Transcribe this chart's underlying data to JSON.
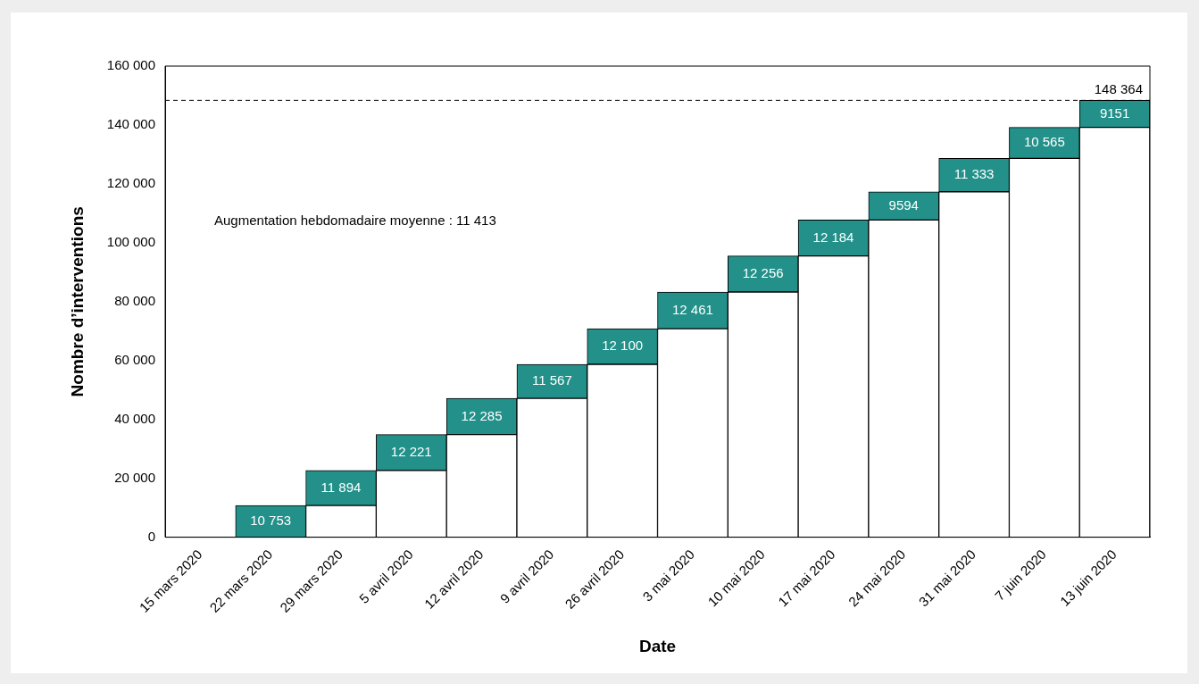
{
  "chart_data": {
    "type": "bar",
    "stacked": true,
    "xlabel": "Date",
    "ylabel": "Nombre d’interventions",
    "categories": [
      "15 mars 2020",
      "22 mars 2020",
      "29 mars 2020",
      "5 avril 2020",
      "12 avril 2020",
      "9 avril 2020",
      "26 avril 2020",
      "3 mai 2020",
      "10 mai 2020",
      "17 mai 2020",
      "24 mai 2020",
      "31 mai 2020",
      "7 juin 2020",
      "13 juin 2020"
    ],
    "series": [
      {
        "color": "#ffffff",
        "values": [
          null,
          null,
          10753,
          22647,
          34868,
          47153,
          58720,
          70820,
          83281,
          95537,
          107721,
          117315,
          128648,
          139213
        ]
      },
      {
        "color": "#23918a",
        "values": [
          null,
          10753,
          11894,
          12221,
          12285,
          11567,
          12100,
          12461,
          12256,
          12184,
          9594,
          11333,
          10565,
          9151
        ],
        "value_labels": [
          null,
          "10 753",
          "11 894",
          "12 221",
          "12 285",
          "11 567",
          "12 100",
          "12 461",
          "12 256",
          "12 184",
          "9594",
          "11 333",
          "10 565",
          "9151"
        ]
      }
    ],
    "ylim": [
      0,
      160000
    ],
    "yticks": [
      {
        "value": 0,
        "label": "0"
      },
      {
        "value": 20000,
        "label": "20 000"
      },
      {
        "value": 40000,
        "label": "40 000"
      },
      {
        "value": 60000,
        "label": "60 000"
      },
      {
        "value": 80000,
        "label": "80 000"
      },
      {
        "value": 100000,
        "label": "100 000"
      },
      {
        "value": 120000,
        "label": "120 000"
      },
      {
        "value": 140000,
        "label": "140 000"
      },
      {
        "value": 160000,
        "label": "160 000"
      }
    ],
    "ref_lines": [
      {
        "axis": "y",
        "value": 148364,
        "label": "148 364",
        "color": "#000000",
        "line_style": "dashed"
      }
    ],
    "annotations": [
      "Augmentation hebdomadaire moyenne : 11 413"
    ]
  }
}
